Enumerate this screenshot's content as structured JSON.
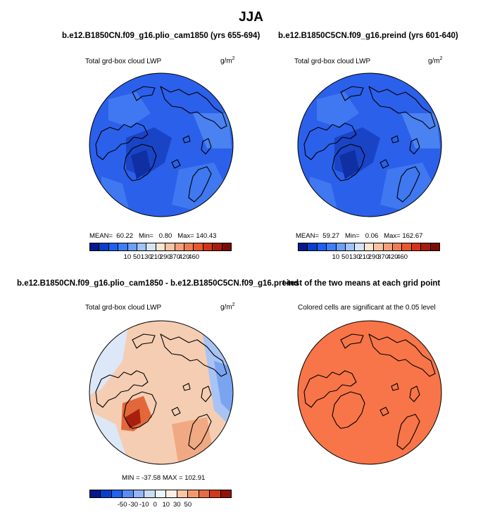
{
  "figure": {
    "season": "JJA"
  },
  "panels": [
    {
      "case_title": "b.e12.B1850CN.f09_g16.plio_cam1850 (yrs 655-694)",
      "variable": "Total grd-box cloud LWP",
      "units_base": "g/m",
      "units_exp": "2",
      "stats": {
        "mean_label": "MEAN=",
        "mean": "60.22",
        "min_label": "Min=",
        "min": "0.80",
        "max_label": "Max=",
        "max": "140.43"
      },
      "field": "absolute"
    },
    {
      "case_title": "b.e12.B1850C5CN.f09_g16.preind (yrs 601-640)",
      "variable": "Total grd-box cloud LWP",
      "units_base": "g/m",
      "units_exp": "2",
      "stats": {
        "mean_label": "MEAN=",
        "mean": "59.27",
        "min_label": "Min=",
        "min": "0.06",
        "max_label": "Max=",
        "max": "162.67"
      },
      "field": "absolute"
    },
    {
      "case_title": "b.e12.B1850CN.f09_g16.plio_cam1850 - b.e12.B1850C5CN.f09_g16.preind",
      "variable": "Total grd-box cloud LWP",
      "units_base": "g/m",
      "units_exp": "2",
      "stats_line": "MIN = -37.58  MAX = 102.91",
      "field": "difference"
    },
    {
      "case_title": "t-test of the two means at each grid point",
      "variable": "Colored cells are significant at the 0.05 level",
      "field": "significance"
    }
  ],
  "colorbars": {
    "absolute": {
      "labels": [
        "10",
        "50",
        "130",
        "210",
        "290",
        "370",
        "420",
        "460"
      ],
      "colors": [
        "#051a8c",
        "#0a3ec8",
        "#1e5ff0",
        "#3f7df5",
        "#6e9ff5",
        "#a3c2f5",
        "#d6e4f7",
        "#fbe4d2",
        "#f7c3a3",
        "#f3a07a",
        "#ee7c52",
        "#e55a2c",
        "#d2341a",
        "#a61c10",
        "#7a0c08"
      ]
    },
    "difference": {
      "labels": [
        "-50",
        "-30",
        "-10",
        "0",
        "10",
        "30",
        "50"
      ],
      "colors": [
        "#051a8c",
        "#0a3ec8",
        "#2461ef",
        "#5a8cf4",
        "#93b6f5",
        "#cadcf7",
        "#eef3fa",
        "#fbeee4",
        "#f7c6a4",
        "#f19a72",
        "#e76c43",
        "#cd3a1c",
        "#8f1509"
      ]
    }
  },
  "colors": {
    "ocean_dark": "#1d4ed8",
    "ocean_mid": "#2f63eb",
    "sig_orange": "#f77548",
    "coast": "#000000"
  }
}
